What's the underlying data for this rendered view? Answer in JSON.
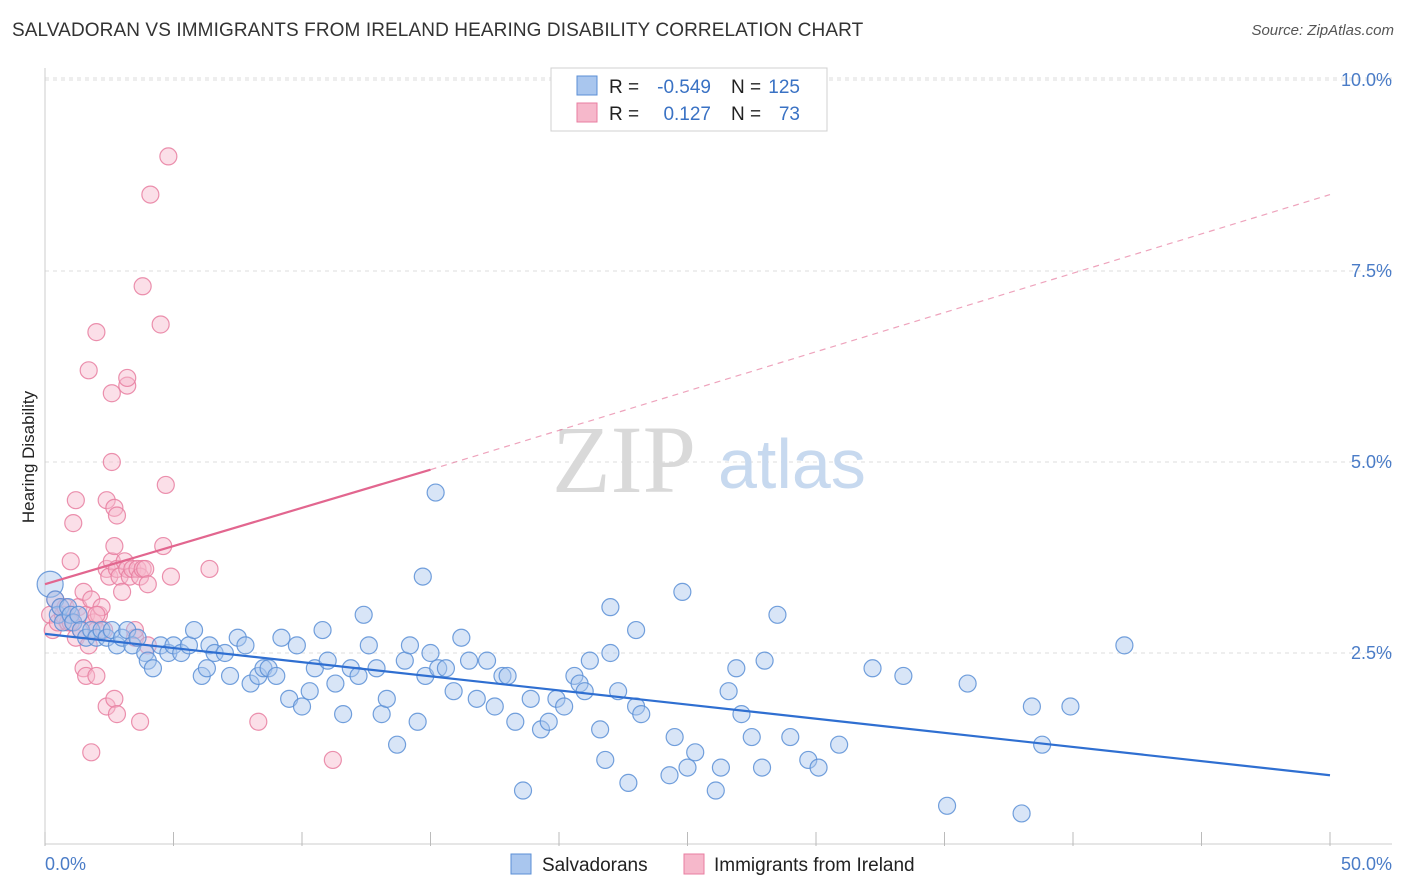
{
  "header": {
    "title": "SALVADORAN VS IMMIGRANTS FROM IRELAND HEARING DISABILITY CORRELATION CHART",
    "source": "Source: ZipAtlas.com"
  },
  "legend": {
    "rows": [
      {
        "r_label": "R =",
        "r_value": "-0.549",
        "n_label": "N =",
        "n_value": "125"
      },
      {
        "r_label": "R =",
        "r_value": "0.127",
        "n_label": "N =",
        "n_value": "73"
      }
    ]
  },
  "bottom_legend": {
    "items": [
      "Salvadorans",
      "Immigrants from Ireland"
    ]
  },
  "watermark": {
    "zip": "ZIP",
    "atlas": "atlas"
  },
  "colors": {
    "blue_fill": "#a9c6ee",
    "blue_stroke": "#5b8fd6",
    "blue_line": "#2f6fd1",
    "pink_fill": "#f6b8cb",
    "pink_stroke": "#e87ea0",
    "pink_line": "#e2668f",
    "tick_text": "#4a7cc7",
    "grid": "#dddddd"
  },
  "chart_data": {
    "type": "scatter",
    "title": "SALVADORAN VS IMMIGRANTS FROM IRELAND HEARING DISABILITY CORRELATION CHART",
    "xlabel": "",
    "ylabel": "Hearing Disability",
    "xlim": [
      0,
      50
    ],
    "ylim": [
      0,
      10.5
    ],
    "x_tick_labels": [
      "0.0%",
      "50.0%"
    ],
    "y_ticks": [
      2.5,
      5.0,
      7.5,
      10.0
    ],
    "y_tick_labels": [
      "2.5%",
      "5.0%",
      "7.5%",
      "10.0%"
    ],
    "grid": true,
    "legend_position": "top-center",
    "series": [
      {
        "name": "Salvadorans",
        "color": "#a9c6ee",
        "R": -0.549,
        "N": 125,
        "trend": {
          "x": [
            0,
            50
          ],
          "y": [
            2.75,
            0.9
          ]
        },
        "points": [
          [
            0.2,
            3.4
          ],
          [
            0.4,
            3.2
          ],
          [
            0.5,
            3.0
          ],
          [
            0.6,
            3.1
          ],
          [
            0.7,
            2.9
          ],
          [
            0.9,
            3.1
          ],
          [
            1.0,
            3.0
          ],
          [
            1.1,
            2.9
          ],
          [
            1.3,
            3.0
          ],
          [
            1.4,
            2.8
          ],
          [
            1.6,
            2.7
          ],
          [
            1.8,
            2.8
          ],
          [
            2.0,
            2.7
          ],
          [
            2.2,
            2.8
          ],
          [
            2.4,
            2.7
          ],
          [
            2.6,
            2.8
          ],
          [
            2.8,
            2.6
          ],
          [
            3.0,
            2.7
          ],
          [
            3.2,
            2.8
          ],
          [
            3.4,
            2.6
          ],
          [
            3.6,
            2.7
          ],
          [
            3.9,
            2.5
          ],
          [
            4.0,
            2.4
          ],
          [
            4.2,
            2.3
          ],
          [
            4.5,
            2.6
          ],
          [
            4.8,
            2.5
          ],
          [
            5.0,
            2.6
          ],
          [
            5.3,
            2.5
          ],
          [
            5.6,
            2.6
          ],
          [
            5.8,
            2.8
          ],
          [
            6.1,
            2.2
          ],
          [
            6.4,
            2.6
          ],
          [
            6.6,
            2.5
          ],
          [
            7.0,
            2.5
          ],
          [
            7.2,
            2.2
          ],
          [
            7.5,
            2.7
          ],
          [
            7.8,
            2.6
          ],
          [
            8.0,
            2.1
          ],
          [
            8.3,
            2.2
          ],
          [
            8.5,
            2.3
          ],
          [
            8.7,
            2.3
          ],
          [
            9.0,
            2.2
          ],
          [
            9.2,
            2.7
          ],
          [
            9.5,
            1.9
          ],
          [
            9.8,
            2.6
          ],
          [
            10.0,
            1.8
          ],
          [
            10.3,
            2.0
          ],
          [
            10.5,
            2.3
          ],
          [
            10.8,
            2.8
          ],
          [
            11.0,
            2.4
          ],
          [
            11.3,
            2.1
          ],
          [
            11.6,
            1.7
          ],
          [
            11.9,
            2.3
          ],
          [
            12.2,
            2.2
          ],
          [
            12.4,
            3.0
          ],
          [
            12.6,
            2.6
          ],
          [
            12.9,
            2.3
          ],
          [
            13.1,
            1.7
          ],
          [
            13.3,
            1.9
          ],
          [
            13.7,
            1.3
          ],
          [
            14.0,
            2.4
          ],
          [
            14.2,
            2.6
          ],
          [
            14.5,
            1.6
          ],
          [
            14.8,
            2.2
          ],
          [
            15.0,
            2.5
          ],
          [
            15.3,
            2.3
          ],
          [
            15.6,
            2.3
          ],
          [
            15.9,
            2.0
          ],
          [
            16.2,
            2.7
          ],
          [
            16.5,
            2.4
          ],
          [
            16.8,
            1.9
          ],
          [
            17.2,
            2.4
          ],
          [
            17.5,
            1.8
          ],
          [
            17.8,
            2.2
          ],
          [
            18.0,
            2.2
          ],
          [
            18.3,
            1.6
          ],
          [
            18.6,
            0.7
          ],
          [
            18.9,
            1.9
          ],
          [
            19.3,
            1.5
          ],
          [
            19.6,
            1.6
          ],
          [
            19.9,
            1.9
          ],
          [
            20.2,
            1.8
          ],
          [
            20.6,
            2.2
          ],
          [
            20.8,
            2.1
          ],
          [
            21.0,
            2.0
          ],
          [
            21.2,
            2.4
          ],
          [
            21.6,
            1.5
          ],
          [
            21.8,
            1.1
          ],
          [
            22.0,
            2.5
          ],
          [
            22.3,
            2.0
          ],
          [
            22.7,
            0.8
          ],
          [
            23.0,
            1.8
          ],
          [
            23.2,
            1.7
          ],
          [
            24.3,
            0.9
          ],
          [
            24.5,
            1.4
          ],
          [
            24.8,
            3.3
          ],
          [
            25.0,
            1.0
          ],
          [
            25.3,
            1.2
          ],
          [
            26.1,
            0.7
          ],
          [
            26.3,
            1.0
          ],
          [
            26.6,
            2.0
          ],
          [
            26.9,
            2.3
          ],
          [
            27.1,
            1.7
          ],
          [
            27.5,
            1.4
          ],
          [
            27.9,
            1.0
          ],
          [
            28.0,
            2.4
          ],
          [
            29.0,
            1.4
          ],
          [
            29.7,
            1.1
          ],
          [
            30.1,
            1.0
          ],
          [
            30.9,
            1.3
          ],
          [
            32.2,
            2.3
          ],
          [
            33.4,
            2.2
          ],
          [
            35.1,
            0.5
          ],
          [
            35.9,
            2.1
          ],
          [
            38.0,
            0.4
          ],
          [
            38.4,
            1.8
          ],
          [
            38.8,
            1.3
          ],
          [
            39.9,
            1.8
          ],
          [
            42.0,
            2.6
          ],
          [
            15.2,
            4.6
          ],
          [
            14.7,
            3.5
          ],
          [
            22.0,
            3.1
          ],
          [
            23.0,
            2.8
          ],
          [
            6.3,
            2.3
          ],
          [
            28.5,
            3.0
          ]
        ]
      },
      {
        "name": "Immigrants from Ireland",
        "color": "#f6b8cb",
        "R": 0.127,
        "N": 73,
        "trend": {
          "x": [
            0,
            15
          ],
          "y": [
            3.4,
            4.9
          ]
        },
        "trend_extended": {
          "x": [
            15,
            50
          ],
          "y": [
            4.9,
            8.5
          ]
        },
        "points": [
          [
            0.2,
            3.0
          ],
          [
            0.3,
            2.8
          ],
          [
            0.4,
            3.2
          ],
          [
            0.5,
            2.9
          ],
          [
            0.6,
            3.1
          ],
          [
            0.7,
            3.0
          ],
          [
            0.8,
            3.1
          ],
          [
            0.9,
            2.9
          ],
          [
            1.0,
            3.0
          ],
          [
            1.1,
            2.9
          ],
          [
            1.2,
            2.7
          ],
          [
            1.3,
            3.1
          ],
          [
            1.4,
            2.8
          ],
          [
            1.5,
            3.3
          ],
          [
            1.6,
            3.0
          ],
          [
            1.7,
            2.6
          ],
          [
            1.8,
            3.2
          ],
          [
            1.9,
            2.9
          ],
          [
            2.0,
            2.8
          ],
          [
            2.1,
            3.0
          ],
          [
            2.2,
            3.1
          ],
          [
            2.3,
            2.8
          ],
          [
            2.4,
            3.6
          ],
          [
            2.5,
            3.5
          ],
          [
            2.6,
            3.7
          ],
          [
            2.7,
            3.9
          ],
          [
            2.8,
            3.6
          ],
          [
            2.9,
            3.5
          ],
          [
            3.0,
            3.3
          ],
          [
            3.1,
            3.7
          ],
          [
            3.2,
            3.6
          ],
          [
            3.3,
            3.5
          ],
          [
            3.4,
            3.6
          ],
          [
            3.5,
            2.7
          ],
          [
            3.6,
            3.6
          ],
          [
            3.7,
            3.5
          ],
          [
            3.8,
            3.6
          ],
          [
            3.9,
            3.6
          ],
          [
            4.0,
            3.4
          ],
          [
            1.0,
            3.7
          ],
          [
            1.1,
            4.2
          ],
          [
            1.2,
            4.5
          ],
          [
            2.4,
            4.5
          ],
          [
            2.7,
            4.4
          ],
          [
            2.8,
            4.3
          ],
          [
            2.6,
            5.0
          ],
          [
            2.6,
            5.9
          ],
          [
            3.2,
            6.0
          ],
          [
            3.2,
            6.1
          ],
          [
            1.7,
            6.2
          ],
          [
            2.0,
            6.7
          ],
          [
            3.8,
            7.3
          ],
          [
            4.5,
            6.8
          ],
          [
            4.7,
            4.7
          ],
          [
            4.6,
            3.9
          ],
          [
            4.9,
            3.5
          ],
          [
            6.4,
            3.6
          ],
          [
            4.1,
            8.5
          ],
          [
            4.8,
            9.0
          ],
          [
            1.5,
            2.3
          ],
          [
            1.6,
            2.2
          ],
          [
            2.0,
            2.2
          ],
          [
            2.4,
            1.8
          ],
          [
            2.7,
            1.9
          ],
          [
            2.8,
            1.7
          ],
          [
            3.7,
            1.6
          ],
          [
            1.8,
            1.2
          ],
          [
            8.3,
            1.6
          ],
          [
            11.2,
            1.1
          ],
          [
            4.0,
            2.6
          ],
          [
            2.0,
            3.0
          ],
          [
            1.0,
            2.9
          ],
          [
            3.5,
            2.8
          ]
        ]
      }
    ]
  }
}
